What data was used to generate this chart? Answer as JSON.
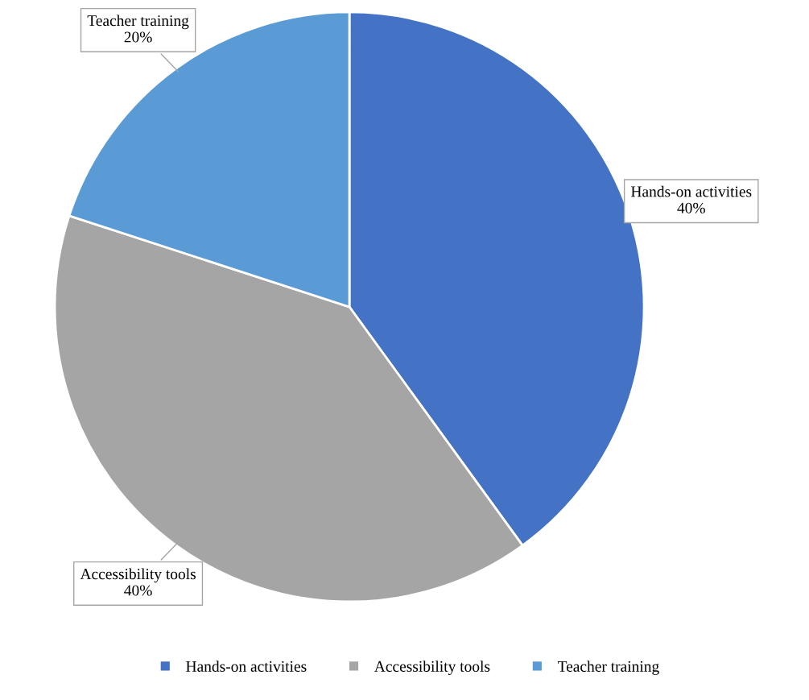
{
  "chart_data": {
    "type": "pie",
    "categories": [
      "Hands-on activities",
      "Accessibility tools",
      "Teacher training"
    ],
    "values": [
      40,
      40,
      20
    ],
    "colors": [
      "#4472c4",
      "#a5a5a5",
      "#5b9bd5"
    ],
    "value_labels": [
      "40%",
      "40%",
      "20%"
    ],
    "legend": "bottom"
  }
}
